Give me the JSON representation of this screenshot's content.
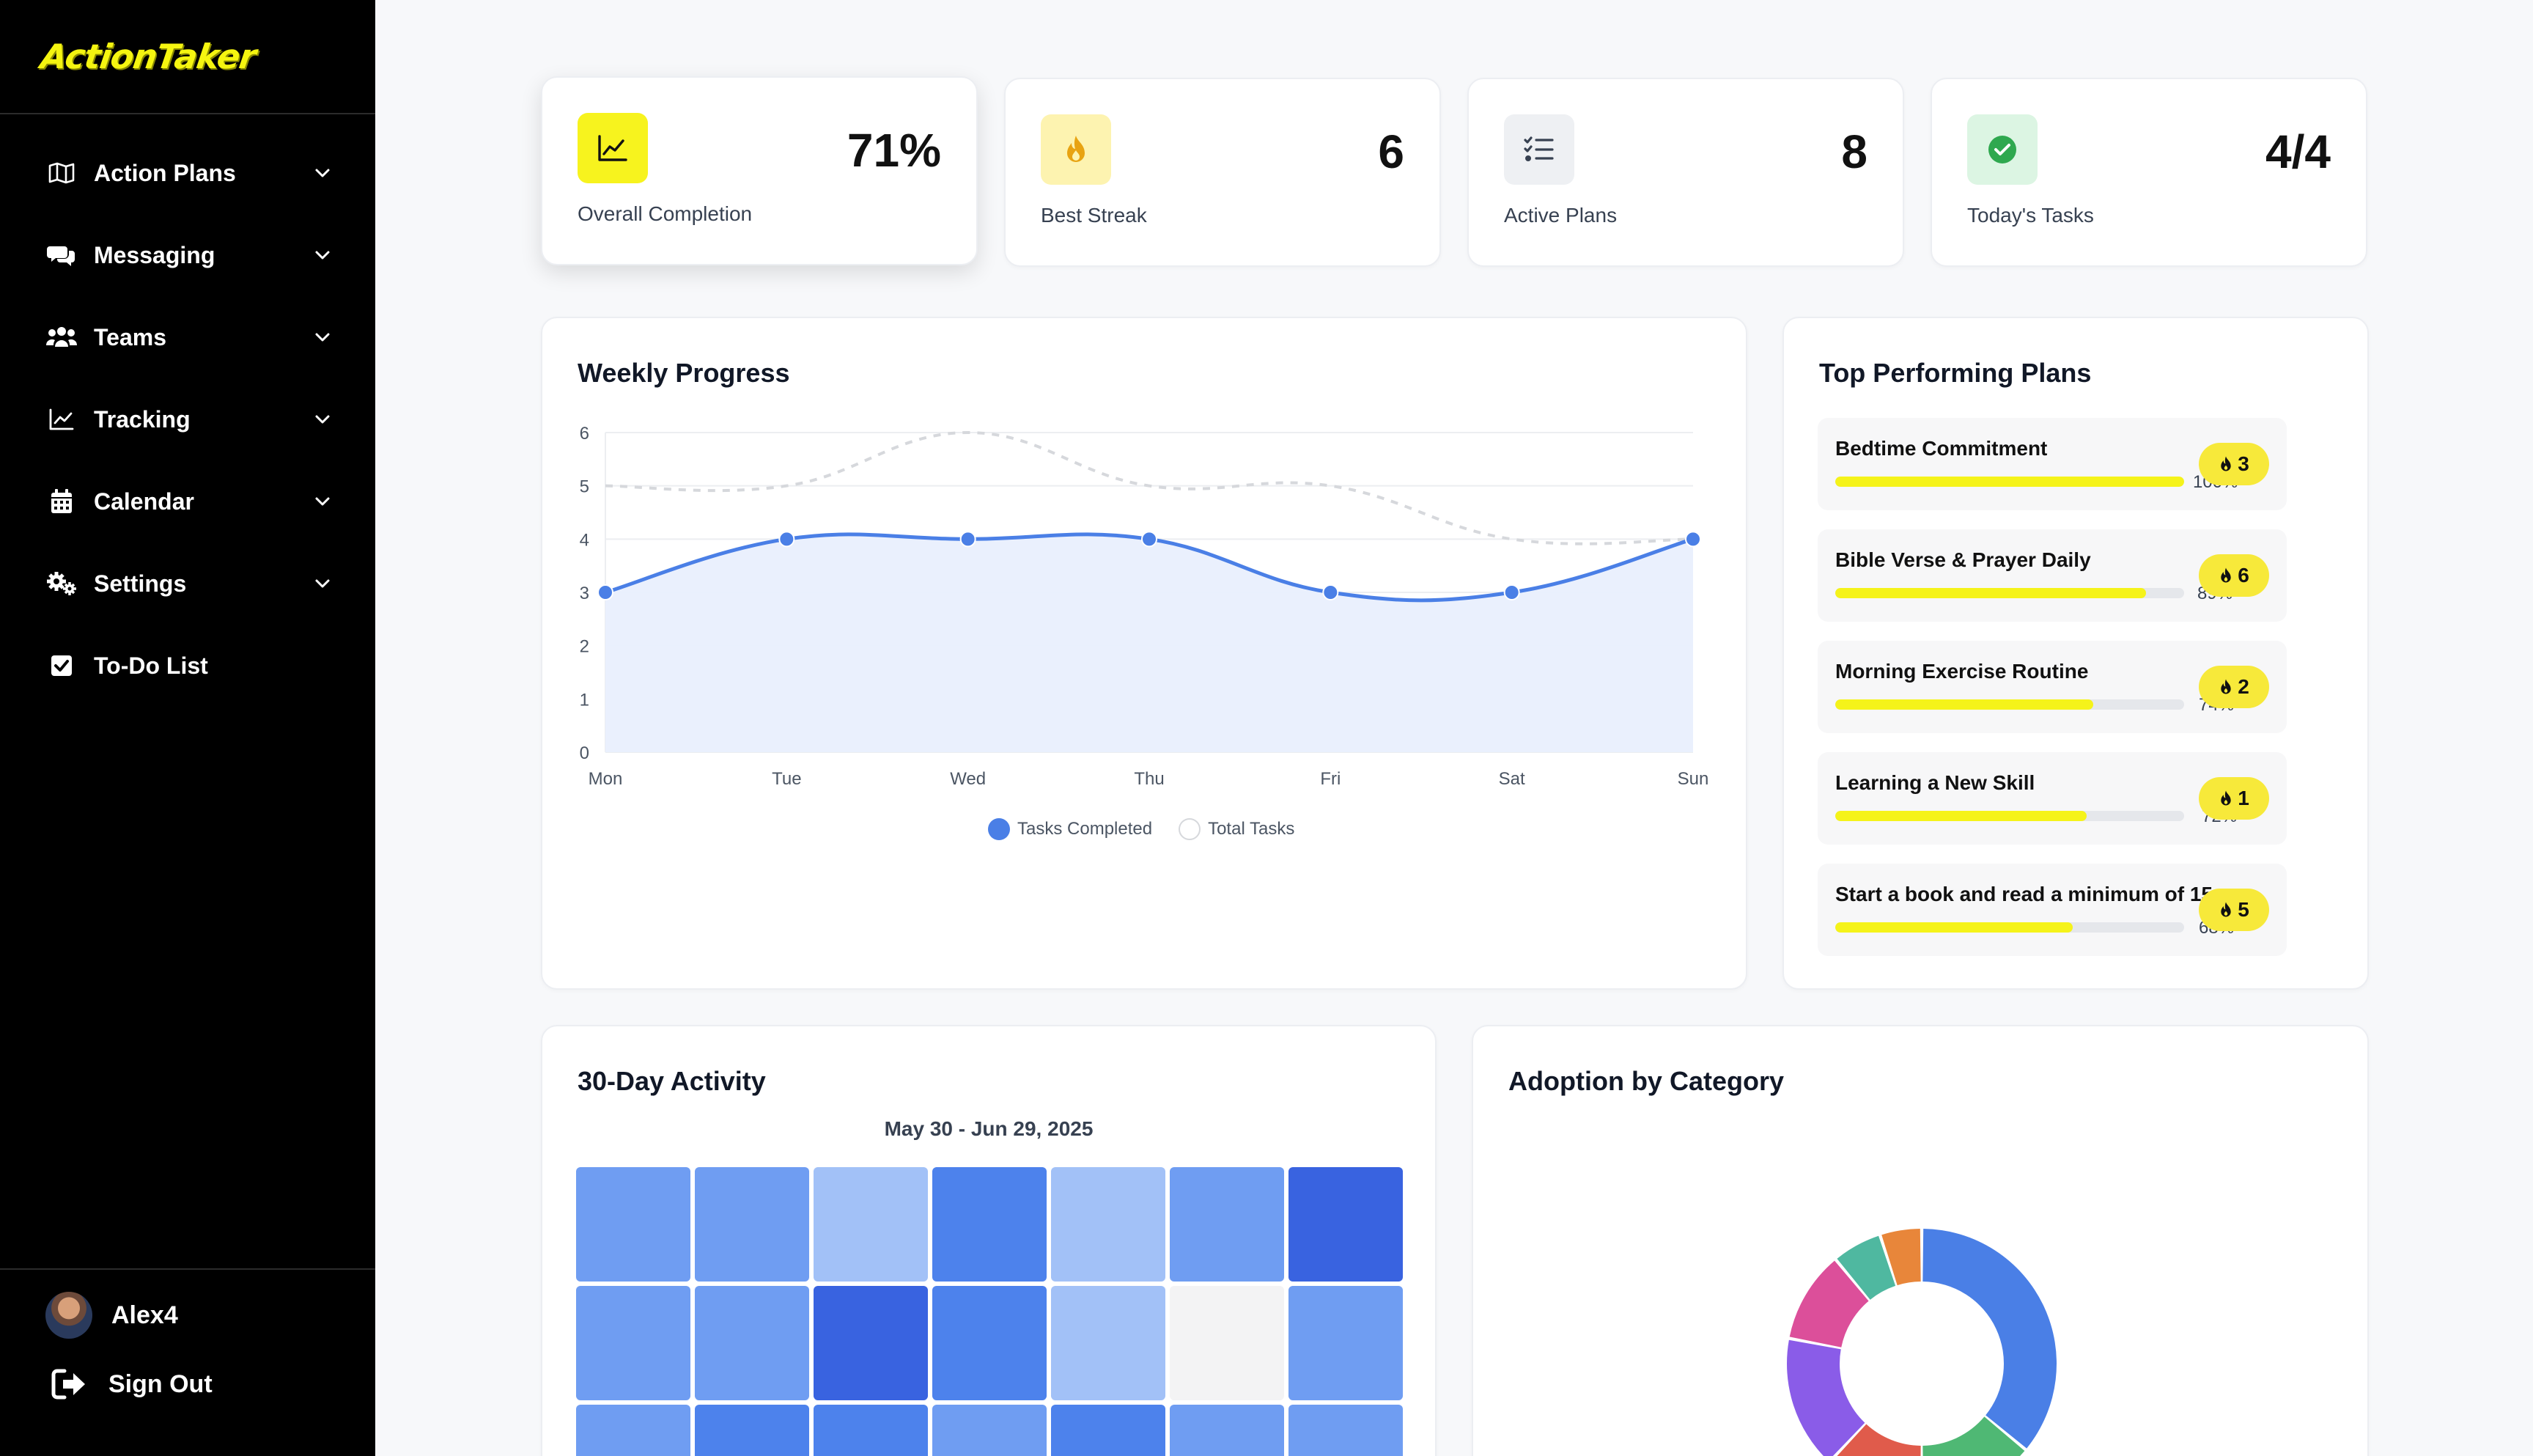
{
  "app": {
    "logo": "ActionTaker"
  },
  "sidebar": {
    "items": [
      {
        "label": "Action Plans",
        "icon": "map-icon",
        "has_chevron": true
      },
      {
        "label": "Messaging",
        "icon": "chat-bubbles-icon",
        "has_chevron": true
      },
      {
        "label": "Teams",
        "icon": "users-icon",
        "has_chevron": true
      },
      {
        "label": "Tracking",
        "icon": "line-chart-icon",
        "has_chevron": true
      },
      {
        "label": "Calendar",
        "icon": "calendar-icon",
        "has_chevron": true
      },
      {
        "label": "Settings",
        "icon": "gears-icon",
        "has_chevron": true
      },
      {
        "label": "To-Do List",
        "icon": "checkbox-icon",
        "has_chevron": false
      }
    ],
    "user": {
      "name": "Alex4"
    },
    "sign_out": "Sign Out"
  },
  "stats": [
    {
      "value": "71%",
      "label": "Overall Completion",
      "icon": "trend-chart-icon",
      "icon_bg": "#f7f31e",
      "icon_color": "#111111"
    },
    {
      "value": "6",
      "label": "Best Streak",
      "icon": "flame-icon",
      "icon_bg": "#fdf3b0",
      "icon_color": "#e8a312"
    },
    {
      "value": "8",
      "label": "Active Plans",
      "icon": "list-check-icon",
      "icon_bg": "#eef0f3",
      "icon_color": "#374151"
    },
    {
      "value": "4/4",
      "label": "Today's Tasks",
      "icon": "check-circle-icon",
      "icon_bg": "#dcf5e3",
      "icon_color": "#2fa84f"
    }
  ],
  "weekly": {
    "title": "Weekly Progress",
    "legend": [
      "Tasks Completed",
      "Total Tasks"
    ]
  },
  "chart_data": {
    "type": "area",
    "title": "Weekly Progress",
    "categories": [
      "Mon",
      "Tue",
      "Wed",
      "Thu",
      "Fri",
      "Sat",
      "Sun"
    ],
    "series": [
      {
        "name": "Tasks Completed",
        "values": [
          3,
          4,
          4,
          4,
          3,
          3,
          4
        ],
        "color": "#4a7fe6"
      },
      {
        "name": "Total Tasks",
        "values": [
          5,
          5,
          6,
          5,
          5,
          4,
          4
        ],
        "color": "#d6d8dc"
      }
    ],
    "ylim": [
      0,
      6
    ],
    "yticks": [
      "0",
      "1",
      "2",
      "3",
      "4",
      "5",
      "6"
    ],
    "grid": true,
    "legend_position": "bottom"
  },
  "top_plans": {
    "title": "Top Performing Plans",
    "items": [
      {
        "name": "Bedtime Commitment",
        "pct_label": "100%",
        "pct": 1.0,
        "streak": "3"
      },
      {
        "name": "Bible Verse & Prayer Daily",
        "pct_label": "89%",
        "pct": 0.89,
        "streak": "6"
      },
      {
        "name": "Morning Exercise Routine",
        "pct_label": "74%",
        "pct": 0.74,
        "streak": "2"
      },
      {
        "name": "Learning a New Skill",
        "pct_label": "72%",
        "pct": 0.72,
        "streak": "1"
      },
      {
        "name": "Start a book and read a minimum of 15 ...",
        "pct_label": "68%",
        "pct": 0.68,
        "streak": "5"
      }
    ]
  },
  "activity": {
    "title": "30-Day Activity",
    "range": "May 30 - Jun 29, 2025",
    "rows": [
      [
        "#6f9df2",
        "#6f9df2",
        "#a2c1f7",
        "#4d82ec",
        "#a2c1f7",
        "#6f9df2",
        "#3963e0"
      ],
      [
        "#6f9df2",
        "#6f9df2",
        "#3963e0",
        "#4d82ec",
        "#a2c1f7",
        "#f3f3f4",
        "#6f9df2"
      ],
      [
        "#6f9df2",
        "#4d82ec",
        "#4d82ec",
        "#6f9df2",
        "#4d82ec",
        "#6f9df2",
        "#6f9df2"
      ]
    ]
  },
  "adoption": {
    "title": "Adoption by Category",
    "segments": [
      {
        "value": 36,
        "color": "#4a7fe6"
      },
      {
        "value": 14,
        "color": "#4fb874"
      },
      {
        "value": 12,
        "color": "#e05b4b"
      },
      {
        "value": 16,
        "color": "#8a5ce8"
      },
      {
        "value": 11,
        "color": "#dc4f9a"
      },
      {
        "value": 6,
        "color": "#4fb8a0"
      },
      {
        "value": 5,
        "color": "#e8863a"
      }
    ]
  }
}
